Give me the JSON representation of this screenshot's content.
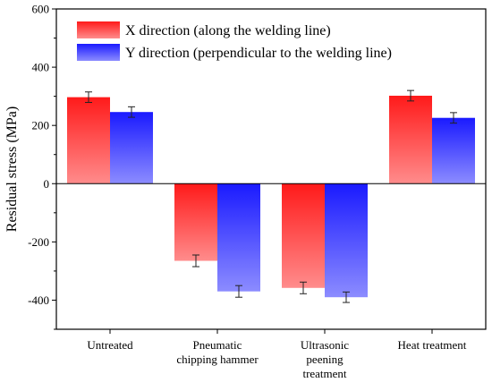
{
  "chart_data": {
    "type": "bar",
    "ylabel": "Residual stress (MPa)",
    "ylim": [
      -500,
      600
    ],
    "yticks": [
      -400,
      -200,
      0,
      200,
      400,
      600
    ],
    "grid": false,
    "legend_position": "top-left",
    "categories": [
      [
        "Untreated"
      ],
      [
        "Pneumatic",
        "chipping hammer"
      ],
      [
        "Ultrasonic",
        "peening",
        "treatment"
      ],
      [
        "Heat treatment"
      ]
    ],
    "series": [
      {
        "name": "X direction (along the welding line)",
        "color_top": "#ff1a1a",
        "color_bottom": "#ff8c8c",
        "values": [
          297,
          -265,
          -358,
          302
        ],
        "errors": [
          18,
          20,
          20,
          18
        ]
      },
      {
        "name": "Y direction (perpendicular to the welding line)",
        "color_top": "#1a1aff",
        "color_bottom": "#8c8cff",
        "values": [
          246,
          -370,
          -390,
          226
        ],
        "errors": [
          18,
          20,
          18,
          18
        ]
      }
    ]
  }
}
